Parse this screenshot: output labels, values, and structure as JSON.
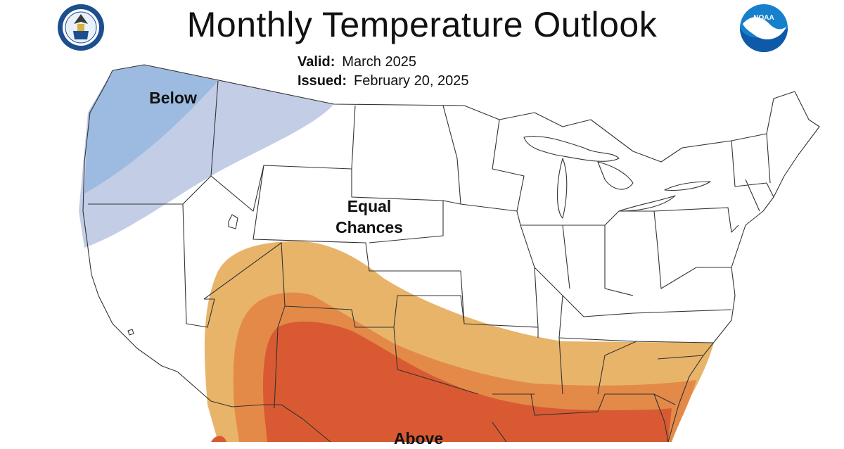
{
  "header": {
    "title": "Monthly Temperature Outlook",
    "valid_label": "Valid:",
    "valid_value": "March 2025",
    "issued_label": "Issued:",
    "issued_value": "February 20, 2025"
  },
  "map": {
    "labels": {
      "below": "Below",
      "equal_line1": "Equal",
      "equal_line2": "Chances",
      "above": "Above"
    },
    "colors": {
      "below_light": "#c3cde6",
      "below_dark": "#9dbbe0",
      "above_1": "#e8b46a",
      "above_2": "#e48a48",
      "above_3": "#d95a32",
      "borders": "#333333"
    }
  },
  "logos": {
    "left": "department-of-commerce-seal",
    "right": "noaa-logo"
  }
}
